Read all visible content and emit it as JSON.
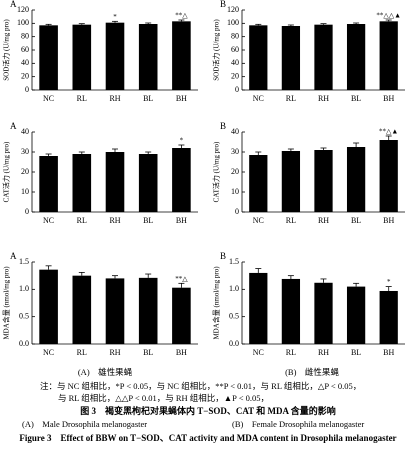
{
  "chart_data": [
    {
      "type": "bar",
      "label": "A",
      "ylabel": "SOD活力 (U/mg pro)",
      "categories": [
        "NC",
        "RL",
        "RH",
        "BL",
        "BH"
      ],
      "values": [
        97,
        98,
        101,
        99,
        103
      ],
      "errors": [
        1.5,
        1.5,
        2,
        1.5,
        2
      ],
      "color": "#000000",
      "ylim": [
        0,
        120
      ],
      "yticks": [
        0,
        20,
        40,
        60,
        80,
        100,
        120
      ],
      "annotations": [
        {
          "category": "RH",
          "text": "*"
        },
        {
          "category": "BH",
          "text": "**△"
        }
      ]
    },
    {
      "type": "bar",
      "label": "B",
      "ylabel": "SOD活力 (U/mg pro)",
      "categories": [
        "NC",
        "RL",
        "RH",
        "BL",
        "BH"
      ],
      "values": [
        97,
        96,
        98,
        99,
        103
      ],
      "errors": [
        1.5,
        1.5,
        1.5,
        1.5,
        2
      ],
      "color": "#000000",
      "ylim": [
        0,
        120
      ],
      "yticks": [
        0,
        20,
        40,
        60,
        80,
        100,
        120
      ],
      "annotations": [
        {
          "category": "BH",
          "text": "**△△▲"
        }
      ]
    },
    {
      "type": "bar",
      "label": "A",
      "ylabel": "CAT活力 (U/mg pro)",
      "categories": [
        "NC",
        "RL",
        "RH",
        "BL",
        "BH"
      ],
      "values": [
        28,
        29,
        30,
        29,
        32
      ],
      "errors": [
        1,
        1,
        1.5,
        1,
        1.5
      ],
      "color": "#000000",
      "ylim": [
        0,
        40
      ],
      "yticks": [
        0,
        10,
        20,
        30,
        40
      ],
      "annotations": [
        {
          "category": "BH",
          "text": "*"
        }
      ]
    },
    {
      "type": "bar",
      "label": "B",
      "ylabel": "CAT活力 (U/mg pro)",
      "categories": [
        "NC",
        "RL",
        "RH",
        "BL",
        "BH"
      ],
      "values": [
        28.5,
        30.5,
        31,
        32.5,
        36
      ],
      "errors": [
        1.5,
        1,
        1,
        2,
        2
      ],
      "color": "#000000",
      "ylim": [
        0,
        40
      ],
      "yticks": [
        0,
        10,
        20,
        30,
        40
      ],
      "annotations": [
        {
          "category": "BH",
          "text": "**△▲"
        }
      ]
    },
    {
      "type": "bar",
      "label": "A",
      "ylabel": "MDA含量 (nmol/mg pro)",
      "categories": [
        "NC",
        "RL",
        "RH",
        "BL",
        "BH"
      ],
      "values": [
        1.36,
        1.25,
        1.2,
        1.21,
        1.03
      ],
      "errors": [
        0.07,
        0.06,
        0.05,
        0.07,
        0.08
      ],
      "color": "#000000",
      "ylim": [
        0,
        1.5
      ],
      "yticks": [
        {
          "value": 0,
          "label": "0.0"
        },
        0.5,
        {
          "value": 1,
          "label": "1.0"
        },
        1.5
      ],
      "annotations": [
        {
          "category": "BH",
          "text": "**△"
        }
      ]
    },
    {
      "type": "bar",
      "label": "B",
      "ylabel": "MDA含量 (nmol/mg pro)",
      "categories": [
        "NC",
        "RL",
        "RH",
        "BL",
        "BH"
      ],
      "values": [
        1.3,
        1.19,
        1.12,
        1.05,
        0.97
      ],
      "errors": [
        0.08,
        0.06,
        0.07,
        0.06,
        0.08
      ],
      "color": "#000000",
      "ylim": [
        0,
        1.5
      ],
      "yticks": [
        {
          "value": 0,
          "label": "0.0"
        },
        0.5,
        {
          "value": 1,
          "label": "1.0"
        },
        1.5
      ],
      "annotations": [
        {
          "category": "BH",
          "text": "*"
        }
      ]
    }
  ],
  "figure": {
    "subcaption_a": "(A)　雄性果蝇",
    "subcaption_b": "(B)　雌性果蝇",
    "note_lines": [
      "注：与 NC 组相比，*P < 0.05，与 NC 组相比，**P < 0.01，与 RL 组相比，△P < 0.05，",
      "与 RL 组相比，△△P < 0.01，与 RH 组相比，▲P < 0.05，"
    ],
    "title_cn": "图 3　褐变黑枸杞对果蝇体内 T−SOD、CAT 和 MDA 含量的影响",
    "legend_a": "(A)　Male Drosophila melanogaster",
    "legend_b": "(B)　Female Drosophila melanogaster",
    "title_en": "Figure 3　Effect of BBW on T−SOD、CAT activity and MDA content in Drosophila melanogaster"
  }
}
